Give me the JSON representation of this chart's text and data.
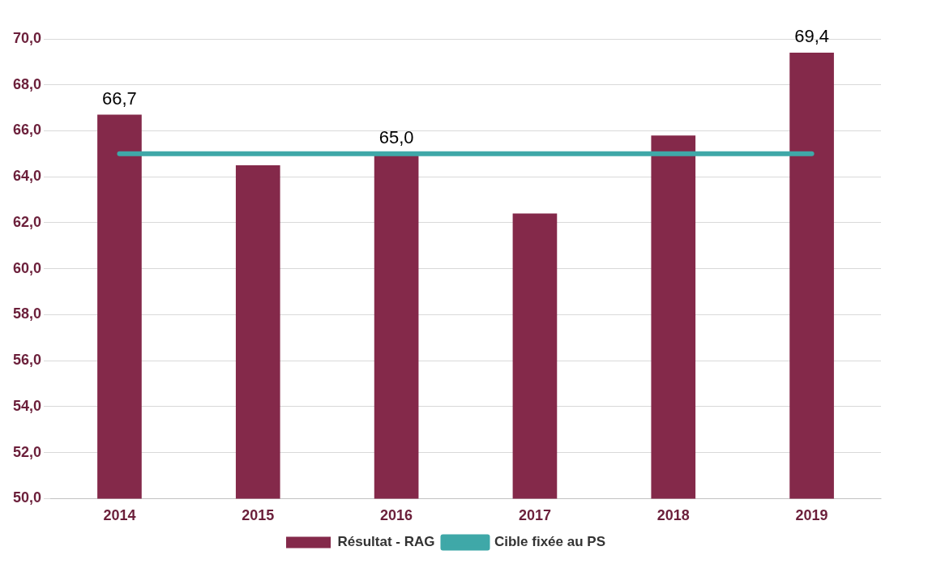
{
  "chart_data": {
    "type": "bar",
    "categories": [
      "2014",
      "2015",
      "2016",
      "2017",
      "2018",
      "2019"
    ],
    "series": [
      {
        "name": "Résultat - RAG",
        "color": "#84294a",
        "values": [
          66.7,
          64.5,
          65.0,
          62.4,
          65.8,
          69.4
        ],
        "value_labels": [
          "66,7",
          null,
          "65,0",
          null,
          null,
          "69,4"
        ]
      },
      {
        "name": "Cible fixée au PS",
        "type": "line",
        "color": "#3fa8a8",
        "values": [
          65,
          65,
          65,
          65,
          65,
          65
        ]
      }
    ],
    "ylim": [
      50,
      70
    ],
    "yticks": [
      {
        "value": 50,
        "label": "50,0"
      },
      {
        "value": 52,
        "label": "52,0"
      },
      {
        "value": 54,
        "label": "54,0"
      },
      {
        "value": 56,
        "label": "56,0"
      },
      {
        "value": 58,
        "label": "58,0"
      },
      {
        "value": 60,
        "label": "60,0"
      },
      {
        "value": 62,
        "label": "62,0"
      },
      {
        "value": 64,
        "label": "64,0"
      },
      {
        "value": 66,
        "label": "66,0"
      },
      {
        "value": 68,
        "label": "68,0"
      },
      {
        "value": 70,
        "label": "70,0"
      }
    ],
    "grid": "y",
    "legend": "bottom",
    "marker": "none"
  }
}
